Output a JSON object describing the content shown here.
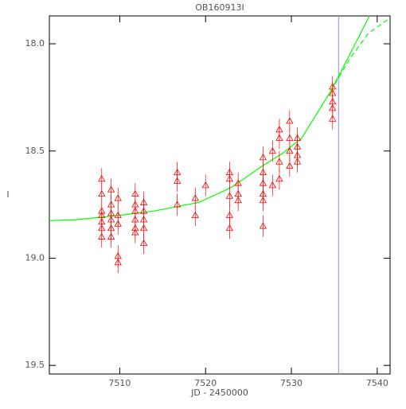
{
  "chart_data": {
    "type": "scatter",
    "title": "OB160913I",
    "x_label": "JD - 2450000",
    "y_label": "I",
    "xlim": [
      7501.8,
      7541.5
    ],
    "xticks": [
      7510,
      7520,
      7530,
      7540
    ],
    "ylim": [
      19.54,
      17.87
    ],
    "yticks": [
      {
        "value": 18,
        "label": "18.0"
      },
      18.5,
      {
        "value": 19,
        "label": "19.0"
      },
      19.5
    ],
    "series": [
      {
        "color": "#ff0000",
        "x": [
          7507.9,
          7507.9,
          7507.9,
          7507.9,
          7507.9,
          7507.9,
          7507.9,
          7509.0,
          7509.0,
          7509.0,
          7509.0,
          7509.0,
          7509.0,
          7509.8,
          7509.8,
          7509.8,
          7509.8,
          7509.8,
          7511.8,
          7511.8,
          7511.8,
          7511.8,
          7511.8,
          7511.8,
          7512.8,
          7512.8,
          7512.8,
          7512.8,
          7512.8,
          7516.7,
          7516.7,
          7516.7,
          7518.8,
          7518.8,
          7520.0,
          7522.8,
          7522.8,
          7522.8,
          7522.8,
          7522.8,
          7523.8,
          7523.8,
          7523.8,
          7526.7,
          7526.7,
          7526.7,
          7526.7,
          7526.7,
          7526.7,
          7527.8,
          7527.8,
          7528.6,
          7528.6,
          7528.6,
          7528.6,
          7529.8,
          7529.8,
          7529.8,
          7529.8,
          7530.7,
          7530.7,
          7530.7,
          7530.7,
          7534.8,
          7534.8,
          7534.8,
          7534.8,
          7534.8
        ],
        "values": [
          18.63,
          18.7,
          18.78,
          18.8,
          18.83,
          18.86,
          18.9,
          18.68,
          18.75,
          18.79,
          18.82,
          18.86,
          18.9,
          18.72,
          18.8,
          18.84,
          18.99,
          19.02,
          18.7,
          18.75,
          18.78,
          18.82,
          18.86,
          18.88,
          18.74,
          18.78,
          18.82,
          18.86,
          18.93,
          18.6,
          18.64,
          18.75,
          18.72,
          18.8,
          18.66,
          18.6,
          18.63,
          18.71,
          18.8,
          18.86,
          18.65,
          18.7,
          18.73,
          18.53,
          18.6,
          18.65,
          18.7,
          18.73,
          18.85,
          18.5,
          18.66,
          18.4,
          18.44,
          18.55,
          18.63,
          18.36,
          18.44,
          18.5,
          18.57,
          18.44,
          18.48,
          18.52,
          18.55,
          18.2,
          18.23,
          18.27,
          18.3,
          18.35
        ],
        "errors": [
          0.05,
          0.05,
          0.05,
          0.05,
          0.05,
          0.05,
          0.05,
          0.05,
          0.05,
          0.05,
          0.05,
          0.05,
          0.05,
          0.05,
          0.05,
          0.05,
          0.05,
          0.05,
          0.05,
          0.05,
          0.05,
          0.05,
          0.05,
          0.05,
          0.05,
          0.05,
          0.05,
          0.05,
          0.05,
          0.05,
          0.05,
          0.05,
          0.05,
          0.05,
          0.05,
          0.05,
          0.05,
          0.05,
          0.05,
          0.05,
          0.05,
          0.05,
          0.05,
          0.05,
          0.05,
          0.05,
          0.05,
          0.05,
          0.05,
          0.05,
          0.05,
          0.05,
          0.05,
          0.05,
          0.05,
          0.05,
          0.05,
          0.05,
          0.05,
          0.05,
          0.05,
          0.05,
          0.05,
          0.05,
          0.05,
          0.05,
          0.05,
          0.05
        ]
      }
    ],
    "lines": [
      {
        "color": "#00ff00",
        "dashed": false,
        "x": [
          7501.8,
          7505,
          7510,
          7514,
          7519.2,
          7523,
          7526.6,
          7529,
          7531.2,
          7534.6,
          7536.8,
          7539.1
        ],
        "values": [
          18.825,
          18.82,
          18.8,
          18.78,
          18.74,
          18.67,
          18.57,
          18.51,
          18.44,
          18.22,
          18.05,
          17.87
        ]
      },
      {
        "color": "#00ff00",
        "dashed": true,
        "x": [
          7534.6,
          7536.8,
          7539,
          7541.5
        ],
        "values": [
          18.22,
          18.07,
          17.95,
          17.88
        ]
      }
    ],
    "vline": {
      "x": 7535.5,
      "color": "#8888ff"
    }
  }
}
